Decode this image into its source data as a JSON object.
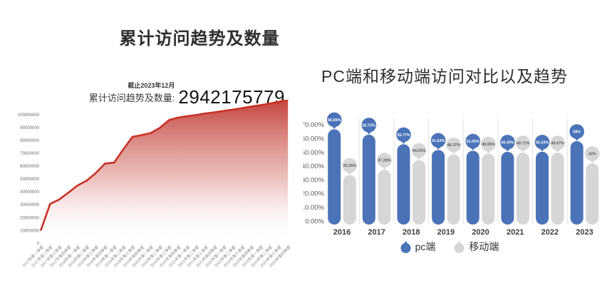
{
  "chart_data": [
    {
      "type": "area",
      "title": "累计访问趋势及数量",
      "stat_as_of": "截止2023年12月",
      "stat_label": "累计访问趋势及数量:",
      "stat_value": "2942175779",
      "x": [
        "2017年第一季度",
        "2017年第二季度",
        "2017年第三季度",
        "2017年第四季度",
        "2018年第一季度",
        "2018年第二季度",
        "2018年第三季度",
        "2018年第四季度",
        "2019年第一季度",
        "2019年第二季度",
        "2019年第三季度",
        "2019年第四季度",
        "2020年第一季度",
        "2020年第二季度",
        "2020年第三季度",
        "2020年第四季度",
        "2021年第一季度",
        "2021年第二季度",
        "2021年第三季度",
        "2021年第四季度",
        "2022年第一季度",
        "2022年第二季度",
        "2022年第三季度",
        "2022年第四季度",
        "2023年第一季度",
        "2023年第二季度",
        "2023年第三季度",
        "2023年第四季度"
      ],
      "values": [
        10300000,
        30500000,
        34000000,
        39300000,
        44900000,
        48600000,
        54600000,
        61900000,
        62600000,
        72900000,
        82600000,
        84000000,
        85600000,
        89700000,
        95700000,
        97600000,
        98700000,
        99600000,
        100900000,
        101700000,
        102800000,
        103900000,
        105000000,
        106200000,
        107300000,
        108400000,
        109900000,
        111800000
      ],
      "y_ticks": [
        "100000000",
        "90000000",
        "80000000",
        "70000000",
        "60000000",
        "50000000",
        "40000000",
        "30000000",
        "20000000",
        "10000000",
        "0"
      ],
      "ylim": [
        0,
        100000000
      ],
      "grid": false,
      "line_color": "#ca3026",
      "fill_color": "#c23d35"
    },
    {
      "type": "bar",
      "title": "PC端和移动端访问对比以及趋势",
      "categories": [
        "2016",
        "2017",
        "2018",
        "2019",
        "2020",
        "2021",
        "2022",
        "2023"
      ],
      "series": [
        {
          "name": "pc端",
          "color": "#4a73b8",
          "values": [
            66.65,
            62.72,
            55.77,
            51.63,
            51.05,
            50.29,
            50.33,
            58
          ],
          "labels": [
            "66.65%",
            "62.72%",
            "55.77%",
            "51.63%",
            "51.05%",
            "50.29%",
            "50.33%",
            "58%"
          ]
        },
        {
          "name": "移动端",
          "color": "#d6d6d8",
          "values": [
            33.35,
            37.28,
            44.23,
            48.37,
            48.95,
            49.71,
            49.67,
            42
          ],
          "labels": [
            "33.35%",
            "37.28%",
            "44.23%",
            "48.37%",
            "48.95%",
            "49.71%",
            "49.67%",
            "42%"
          ]
        }
      ],
      "y_ticks": [
        "70.00%",
        "60.00%",
        "50.00%",
        "40.00%",
        "30.00%",
        "20.00%",
        "10.00%",
        "0.00%"
      ],
      "ylim": [
        0,
        70
      ],
      "grid": false,
      "legend_position": "bottom",
      "separator_color": "#e3e3e4"
    }
  ]
}
